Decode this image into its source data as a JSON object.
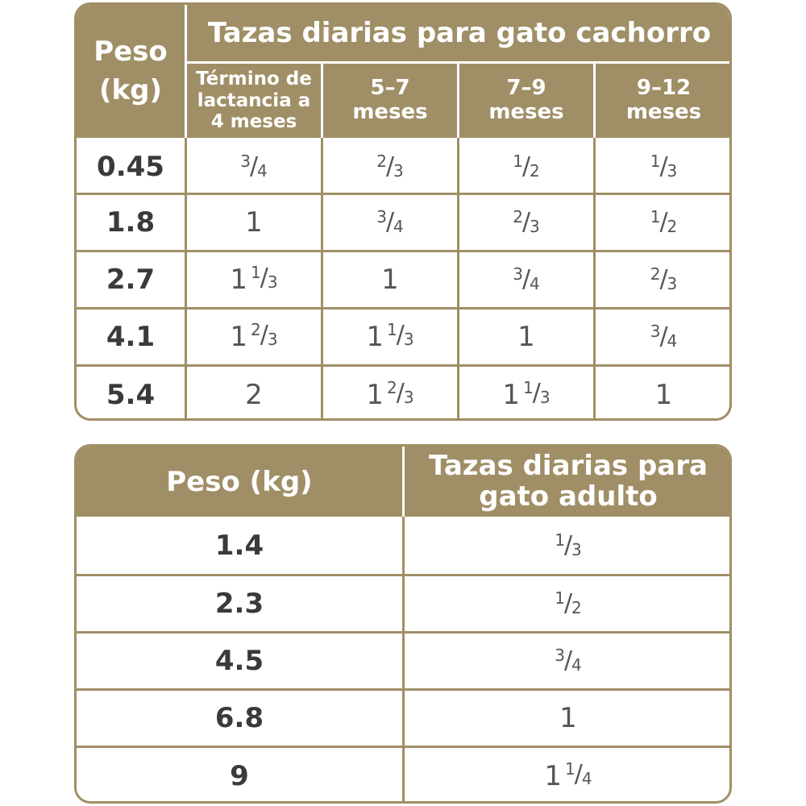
{
  "puppy_table": {
    "weight_header": "Peso (kg)",
    "title": "Tazas diarias para gato cachorro",
    "columns": [
      "Término de lactancia a 4 meses",
      "5–7 meses",
      "7–9 meses",
      "9–12 meses"
    ],
    "rows": [
      {
        "weight": "0.45",
        "values": [
          "3/4",
          "2/3",
          "1/2",
          "1/3"
        ]
      },
      {
        "weight": "1.8",
        "values": [
          "1",
          "3/4",
          "2/3",
          "1/2"
        ]
      },
      {
        "weight": "2.7",
        "values": [
          "1 1/3",
          "1",
          "3/4",
          "2/3"
        ]
      },
      {
        "weight": "4.1",
        "values": [
          "1 2/3",
          "1 1/3",
          "1",
          "3/4"
        ]
      },
      {
        "weight": "5.4",
        "values": [
          "2",
          "1 2/3",
          "1 1/3",
          "1"
        ]
      }
    ]
  },
  "adult_table": {
    "weight_header": "Peso (kg)",
    "title": "Tazas diarias para gato adulto",
    "rows": [
      {
        "weight": "1.4",
        "value": "1/3"
      },
      {
        "weight": "2.3",
        "value": "1/2"
      },
      {
        "weight": "4.5",
        "value": "3/4"
      },
      {
        "weight": "6.8",
        "value": "1"
      },
      {
        "weight": "9",
        "value": "1 1/4"
      }
    ]
  },
  "colors": {
    "header_bg": "#a08f66",
    "header_text": "#ffffff",
    "weight_text": "#3a3a3a",
    "value_text": "#555555"
  }
}
